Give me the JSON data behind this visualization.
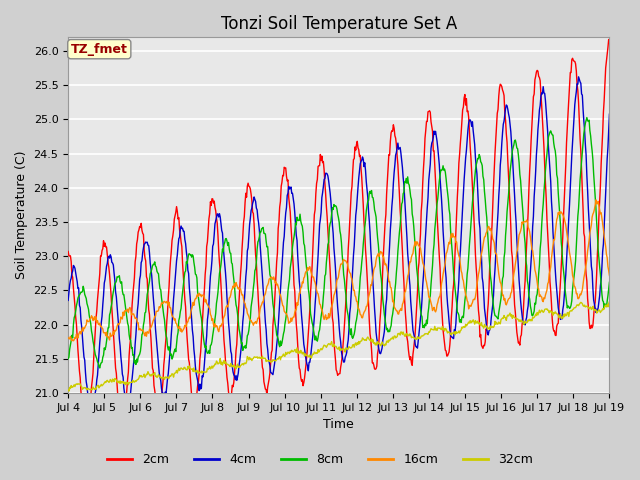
{
  "title": "Tonzi Soil Temperature Set A",
  "ylabel": "Soil Temperature (C)",
  "xlabel": "Time",
  "annotation": "TZ_fmet",
  "ylim": [
    21.0,
    26.2
  ],
  "yticks": [
    21.0,
    21.5,
    22.0,
    22.5,
    23.0,
    23.5,
    24.0,
    24.5,
    25.0,
    25.5,
    26.0
  ],
  "xtick_labels": [
    "Jul 4",
    "Jul 5",
    "Jul 6",
    "Jul 7",
    "Jul 8",
    "Jul 9",
    "Jul 10",
    "Jul 11",
    "Jul 12",
    "Jul 13",
    "Jul 14",
    "Jul 15",
    "Jul 16",
    "Jul 17",
    "Jul 18",
    "Jul 19"
  ],
  "series_colors": {
    "2cm": "#ff0000",
    "4cm": "#0000cc",
    "8cm": "#00bb00",
    "16cm": "#ff8800",
    "32cm": "#cccc00"
  },
  "series_labels": [
    "2cm",
    "4cm",
    "8cm",
    "16cm",
    "32cm"
  ],
  "fig_facecolor": "#d0d0d0",
  "ax_facecolor": "#e8e8e8",
  "grid_color": "#ffffff",
  "title_fontsize": 12,
  "tick_fontsize": 8,
  "axis_label_fontsize": 9,
  "legend_fontsize": 9,
  "n_points": 720
}
